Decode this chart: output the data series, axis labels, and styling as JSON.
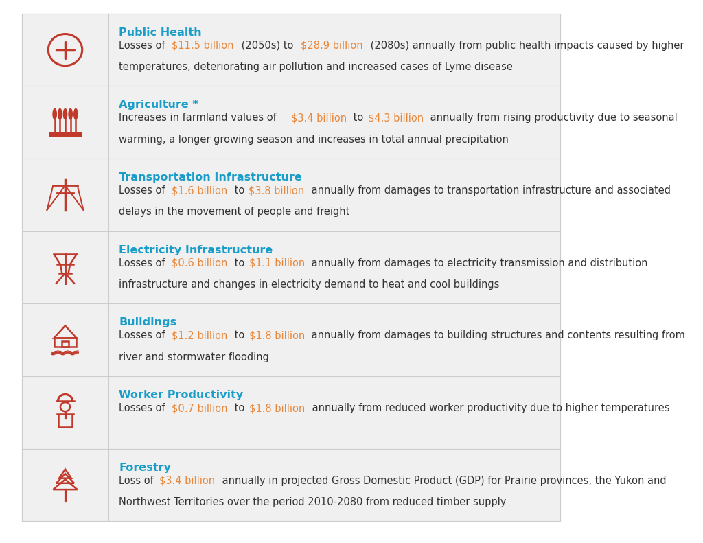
{
  "bg_color": "#f0f0f0",
  "outer_bg": "#ffffff",
  "title_color": "#1a9ec9",
  "text_color": "#333333",
  "highlight_color": "#e8873a",
  "icon_color": "#c0392b",
  "divider_color": "#cccccc",
  "rows": [
    {
      "title": "Public Health",
      "body_parts": [
        {
          "text": "Losses of ",
          "color": "#333333"
        },
        {
          "text": "$11.5 billion",
          "color": "#e8873a"
        },
        {
          "text": " (2050s) to ",
          "color": "#333333"
        },
        {
          "text": "$28.9 billion",
          "color": "#e8873a"
        },
        {
          "text": " (2080s) annually from public health impacts caused by higher\ntemperatures, deteriorating air pollution and increased cases of Lyme disease",
          "color": "#333333"
        }
      ],
      "icon": "health"
    },
    {
      "title": "Agriculture *",
      "body_parts": [
        {
          "text": "Increases in farmland values of ",
          "color": "#333333"
        },
        {
          "text": "$3.4 billion",
          "color": "#e8873a"
        },
        {
          "text": " to ",
          "color": "#333333"
        },
        {
          "text": "$4.3 billion",
          "color": "#e8873a"
        },
        {
          "text": " annually from rising productivity due to seasonal\nwarming, a longer growing season and increases in total annual precipitation",
          "color": "#333333"
        }
      ],
      "icon": "agriculture"
    },
    {
      "title": "Transportation Infrastructure",
      "body_parts": [
        {
          "text": "Losses of ",
          "color": "#333333"
        },
        {
          "text": "$1.6 billion",
          "color": "#e8873a"
        },
        {
          "text": " to ",
          "color": "#333333"
        },
        {
          "text": "$3.8 billion",
          "color": "#e8873a"
        },
        {
          "text": " annually from damages to transportation infrastructure and associated\ndelays in the movement of people and freight",
          "color": "#333333"
        }
      ],
      "icon": "transport"
    },
    {
      "title": "Electricity Infrastructure",
      "body_parts": [
        {
          "text": "Losses of ",
          "color": "#333333"
        },
        {
          "text": "$0.6 billion",
          "color": "#e8873a"
        },
        {
          "text": " to ",
          "color": "#333333"
        },
        {
          "text": "$1.1 billion",
          "color": "#e8873a"
        },
        {
          "text": " annually from damages to electricity transmission and distribution\ninfrastructure and changes in electricity demand to heat and cool buildings",
          "color": "#333333"
        }
      ],
      "icon": "electricity"
    },
    {
      "title": "Buildings",
      "body_parts": [
        {
          "text": "Losses of ",
          "color": "#333333"
        },
        {
          "text": "$1.2 billion",
          "color": "#e8873a"
        },
        {
          "text": " to ",
          "color": "#333333"
        },
        {
          "text": "$1.8 billion",
          "color": "#e8873a"
        },
        {
          "text": " annually from damages to building structures and contents resulting from\nriver and stormwater flooding",
          "color": "#333333"
        }
      ],
      "icon": "buildings"
    },
    {
      "title": "Worker Productivity",
      "body_parts": [
        {
          "text": "Losses of ",
          "color": "#333333"
        },
        {
          "text": "$0.7 billion",
          "color": "#e8873a"
        },
        {
          "text": " to ",
          "color": "#333333"
        },
        {
          "text": "$1.8 billion",
          "color": "#e8873a"
        },
        {
          "text": " annually from reduced worker productivity due to higher temperatures",
          "color": "#333333"
        }
      ],
      "icon": "worker"
    },
    {
      "title": "Forestry",
      "body_parts": [
        {
          "text": "Loss of ",
          "color": "#333333"
        },
        {
          "text": "$3.4 billion",
          "color": "#e8873a"
        },
        {
          "text": " annually in projected Gross Domestic Product (GDP) for Prairie provinces, the Yukon and\nNorthwest Territories over the period 2010-2080 from reduced timber supply",
          "color": "#333333"
        }
      ],
      "icon": "forestry"
    }
  ]
}
